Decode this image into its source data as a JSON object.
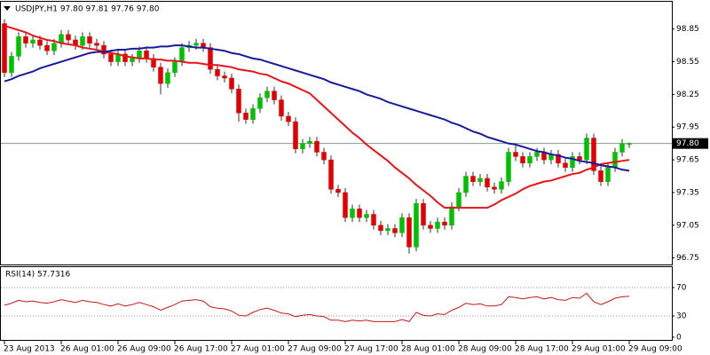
{
  "chart_data": [
    {
      "type": "candlestick",
      "title": "USDJPY,H1  97.80 97.81 97.76 97.80",
      "categories": [
        "23 Aug 2013",
        null,
        null,
        null,
        null,
        null,
        null,
        null,
        "26 Aug 01:00",
        null,
        null,
        null,
        null,
        null,
        null,
        null,
        "26 Aug 09:00",
        null,
        null,
        null,
        null,
        null,
        null,
        null,
        "26 Aug 17:00",
        null,
        null,
        null,
        null,
        null,
        null,
        null,
        "27 Aug 01:00",
        null,
        null,
        null,
        null,
        null,
        null,
        null,
        "27 Aug 09:00",
        null,
        null,
        null,
        null,
        null,
        null,
        null,
        "27 Aug 17:00",
        null,
        null,
        null,
        null,
        null,
        null,
        null,
        "28 Aug 01:00",
        null,
        null,
        null,
        null,
        null,
        null,
        null,
        "28 Aug 09:00",
        null,
        null,
        null,
        null,
        null,
        null,
        null,
        "28 Aug 17:00",
        null,
        null,
        null,
        null,
        null,
        null,
        null,
        "29 Aug 01:00",
        null,
        null,
        null,
        null,
        null,
        null,
        null,
        "29 Aug 09:00"
      ],
      "open": [
        98.9,
        98.45,
        98.6,
        98.78,
        98.72,
        98.75,
        98.7,
        98.65,
        98.72,
        98.8,
        98.75,
        98.7,
        98.78,
        98.72,
        98.7,
        98.62,
        98.55,
        98.62,
        98.55,
        98.58,
        98.65,
        98.58,
        98.5,
        98.35,
        98.45,
        98.55,
        98.68,
        98.7,
        98.72,
        98.68,
        98.48,
        98.42,
        98.4,
        98.3,
        98.08,
        98.02,
        98.12,
        98.22,
        98.28,
        98.2,
        98.05,
        98.0,
        97.75,
        97.8,
        97.82,
        97.72,
        97.65,
        97.38,
        97.35,
        97.12,
        97.2,
        97.12,
        97.15,
        97.05,
        97.0,
        97.02,
        96.98,
        97.12,
        96.85,
        97.25,
        97.05,
        97.02,
        97.08,
        97.05,
        97.22,
        97.35,
        97.5,
        97.45,
        97.48,
        97.4,
        97.38,
        97.45,
        97.72,
        97.68,
        97.62,
        97.68,
        97.72,
        97.65,
        97.7,
        97.62,
        97.58,
        97.68,
        97.65,
        97.85,
        97.55,
        97.45,
        97.58,
        97.72,
        97.8
      ],
      "high": [
        98.94,
        98.64,
        98.82,
        98.82,
        98.79,
        98.79,
        98.74,
        98.76,
        98.84,
        98.84,
        98.79,
        98.82,
        98.82,
        98.76,
        98.74,
        98.66,
        98.66,
        98.66,
        98.62,
        98.69,
        98.69,
        98.62,
        98.54,
        98.49,
        98.59,
        98.72,
        98.74,
        98.76,
        98.76,
        98.72,
        98.52,
        98.46,
        98.44,
        98.34,
        98.12,
        98.16,
        98.26,
        98.32,
        98.32,
        98.24,
        98.09,
        98.04,
        97.84,
        97.86,
        97.86,
        97.76,
        97.69,
        97.42,
        97.39,
        97.24,
        97.24,
        97.19,
        97.19,
        97.09,
        97.06,
        97.06,
        97.16,
        97.16,
        97.29,
        97.29,
        97.09,
        97.12,
        97.12,
        97.26,
        97.39,
        97.54,
        97.54,
        97.52,
        97.52,
        97.44,
        97.49,
        97.76,
        97.8,
        97.72,
        97.72,
        97.76,
        97.76,
        97.74,
        97.74,
        97.66,
        97.72,
        97.72,
        97.89,
        97.89,
        97.59,
        97.62,
        97.76,
        97.84,
        97.81
      ],
      "low": [
        98.41,
        98.41,
        98.56,
        98.68,
        98.68,
        98.66,
        98.61,
        98.61,
        98.68,
        98.71,
        98.66,
        98.66,
        98.68,
        98.66,
        98.58,
        98.51,
        98.51,
        98.51,
        98.51,
        98.54,
        98.54,
        98.46,
        98.25,
        98.31,
        98.41,
        98.51,
        98.64,
        98.66,
        98.64,
        98.44,
        98.38,
        98.36,
        98.26,
        98.0,
        97.98,
        97.98,
        98.08,
        98.18,
        98.16,
        98.01,
        97.96,
        97.71,
        97.71,
        97.76,
        97.68,
        97.61,
        97.34,
        97.31,
        97.08,
        97.08,
        97.08,
        97.08,
        97.01,
        96.96,
        96.96,
        96.94,
        96.94,
        96.79,
        96.81,
        97.01,
        96.98,
        96.98,
        97.01,
        97.01,
        97.18,
        97.31,
        97.41,
        97.41,
        97.36,
        97.34,
        97.34,
        97.41,
        97.64,
        97.58,
        97.58,
        97.64,
        97.61,
        97.61,
        97.58,
        97.54,
        97.54,
        97.61,
        97.61,
        97.51,
        97.41,
        97.41,
        97.54,
        97.68,
        97.76
      ],
      "close": [
        98.45,
        98.6,
        98.78,
        98.72,
        98.75,
        98.7,
        98.65,
        98.72,
        98.8,
        98.75,
        98.7,
        98.78,
        98.72,
        98.7,
        98.62,
        98.55,
        98.62,
        98.55,
        98.58,
        98.65,
        98.58,
        98.5,
        98.35,
        98.45,
        98.55,
        98.68,
        98.7,
        98.72,
        98.68,
        98.48,
        98.42,
        98.4,
        98.3,
        98.08,
        98.02,
        98.12,
        98.22,
        98.28,
        98.2,
        98.05,
        98.0,
        97.75,
        97.8,
        97.82,
        97.72,
        97.65,
        97.38,
        97.35,
        97.12,
        97.2,
        97.12,
        97.15,
        97.05,
        97.0,
        97.02,
        96.98,
        97.12,
        96.85,
        97.25,
        97.05,
        97.02,
        97.08,
        97.05,
        97.22,
        97.35,
        97.5,
        97.45,
        97.48,
        97.4,
        97.38,
        97.45,
        97.72,
        97.68,
        97.62,
        97.68,
        97.72,
        97.65,
        97.7,
        97.62,
        97.58,
        97.68,
        97.65,
        97.85,
        97.55,
        97.45,
        97.58,
        97.72,
        97.8,
        97.8
      ],
      "up_color": "#00c000",
      "down_color": "#e00000",
      "wick_color": "#303030",
      "lines": [
        {
          "color": "#e8141a",
          "values": [
            98.88,
            98.86,
            98.84,
            98.82,
            98.79,
            98.77,
            98.75,
            98.74,
            98.72,
            98.71,
            98.7,
            98.68,
            98.67,
            98.66,
            98.64,
            98.63,
            98.62,
            98.6,
            98.59,
            98.58,
            98.58,
            98.57,
            98.57,
            98.56,
            98.56,
            98.55,
            98.54,
            98.54,
            98.53,
            98.52,
            98.52,
            98.51,
            98.5,
            98.48,
            98.47,
            98.46,
            98.44,
            98.43,
            98.4,
            98.37,
            98.35,
            98.32,
            98.29,
            98.26,
            98.2,
            98.14,
            98.08,
            98.02,
            97.96,
            97.9,
            97.85,
            97.79,
            97.74,
            97.69,
            97.64,
            97.58,
            97.53,
            97.48,
            97.42,
            97.37,
            97.32,
            97.26,
            97.21,
            97.21,
            97.21,
            97.21,
            97.21,
            97.21,
            97.21,
            97.24,
            97.28,
            97.31,
            97.34,
            97.38,
            97.41,
            97.43,
            97.45,
            97.46,
            97.48,
            97.5,
            97.52,
            97.53,
            97.56,
            97.58,
            97.61,
            97.62,
            97.63,
            97.64,
            97.65
          ]
        },
        {
          "color": "#1a1a9c",
          "values": [
            98.37,
            98.39,
            98.42,
            98.44,
            98.46,
            98.49,
            98.51,
            98.53,
            98.55,
            98.57,
            98.59,
            98.61,
            98.63,
            98.64,
            98.64,
            98.65,
            98.66,
            98.66,
            98.67,
            98.67,
            98.68,
            98.68,
            98.69,
            98.69,
            98.7,
            98.7,
            98.69,
            98.68,
            98.68,
            98.67,
            98.66,
            98.65,
            98.63,
            98.62,
            98.6,
            98.58,
            98.57,
            98.55,
            98.53,
            98.51,
            98.49,
            98.47,
            98.45,
            98.43,
            98.41,
            98.39,
            98.36,
            98.34,
            98.32,
            98.3,
            98.28,
            98.25,
            98.23,
            98.21,
            98.18,
            98.16,
            98.14,
            98.12,
            98.1,
            98.08,
            98.06,
            98.04,
            98.02,
            97.99,
            97.97,
            97.94,
            97.91,
            97.89,
            97.86,
            97.84,
            97.82,
            97.8,
            97.79,
            97.77,
            97.75,
            97.73,
            97.72,
            97.7,
            97.69,
            97.67,
            97.66,
            97.64,
            97.63,
            97.62,
            97.6,
            97.59,
            97.58,
            97.56,
            97.55
          ]
        }
      ],
      "current_price": {
        "value": 97.8,
        "label": "97.80"
      },
      "current_price_color": "#7f9f8f",
      "ylim": [
        96.69,
        99.1
      ],
      "yticks": [
        98.85,
        98.55,
        98.25,
        97.95,
        97.65,
        97.35,
        97.05,
        96.75
      ]
    },
    {
      "type": "line",
      "title": "RSI(14) 57.7316",
      "color": "#c81818",
      "values": [
        45,
        48,
        52,
        50,
        51,
        49,
        48,
        50,
        53,
        51,
        49,
        52,
        50,
        49,
        46,
        44,
        47,
        44,
        46,
        49,
        46,
        43,
        38,
        42,
        46,
        51,
        52,
        53,
        51,
        43,
        41,
        40,
        37,
        31,
        30,
        35,
        39,
        41,
        38,
        34,
        33,
        29,
        31,
        32,
        30,
        29,
        24,
        24,
        22,
        24,
        23,
        24,
        22,
        22,
        22,
        22,
        25,
        22,
        35,
        31,
        30,
        33,
        32,
        38,
        42,
        48,
        46,
        47,
        44,
        44,
        46,
        57,
        56,
        54,
        56,
        57,
        54,
        56,
        53,
        52,
        56,
        55,
        62,
        50,
        46,
        50,
        55,
        57,
        57.7316
      ],
      "ylim": [
        0,
        100
      ],
      "yticks": [
        70,
        30,
        0
      ],
      "grid": true
    }
  ]
}
